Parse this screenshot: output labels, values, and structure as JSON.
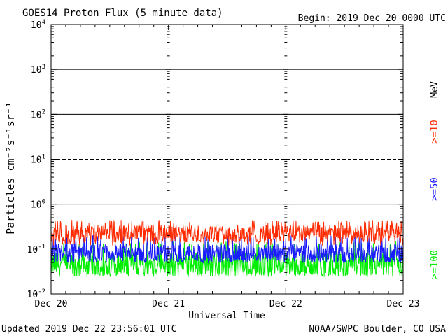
{
  "chart_data": {
    "type": "line",
    "title": "GOES14 Proton Flux (5 minute data)",
    "begin_label": "Begin: 2019 Dec 20 0000 UTC",
    "xlabel": "Universal Time",
    "ylabel": "Particles cm⁻²s⁻¹sr⁻¹",
    "y_scale": "log",
    "ylim": [
      0.01,
      10000
    ],
    "y_ticks": [
      {
        "base": "10",
        "exp": "-2"
      },
      {
        "base": "10",
        "exp": "-1"
      },
      {
        "base": "10",
        "exp": "0"
      },
      {
        "base": "10",
        "exp": "1"
      },
      {
        "base": "10",
        "exp": "2"
      },
      {
        "base": "10",
        "exp": "3"
      },
      {
        "base": "10",
        "exp": "4"
      }
    ],
    "x_ticks": [
      "Dec 20",
      "Dec 21",
      "Dec 22",
      "Dec 23"
    ],
    "xlim_days": [
      0,
      3
    ],
    "threshold_lines": [
      {
        "value": 1,
        "style": "solid"
      },
      {
        "value": 10,
        "style": "dashed"
      },
      {
        "value": 100,
        "style": "solid"
      },
      {
        "value": 1000,
        "style": "solid"
      }
    ],
    "unit_label": "MeV",
    "series": [
      {
        "name": ">=10",
        "color": "#ff2a00",
        "level_typical": 0.22,
        "level_range": [
          0.12,
          0.45
        ]
      },
      {
        "name": ">=50",
        "color": "#1a1aff",
        "level_typical": 0.08,
        "level_range": [
          0.05,
          0.2
        ]
      },
      {
        "name": ">=100",
        "color": "#00ee00",
        "level_typical": 0.045,
        "level_range": [
          0.025,
          0.15
        ]
      }
    ],
    "grid": false
  },
  "footer": {
    "updated": "Updated 2019 Dec 22 23:56:01 UTC",
    "source": "NOAA/SWPC Boulder, CO USA"
  }
}
